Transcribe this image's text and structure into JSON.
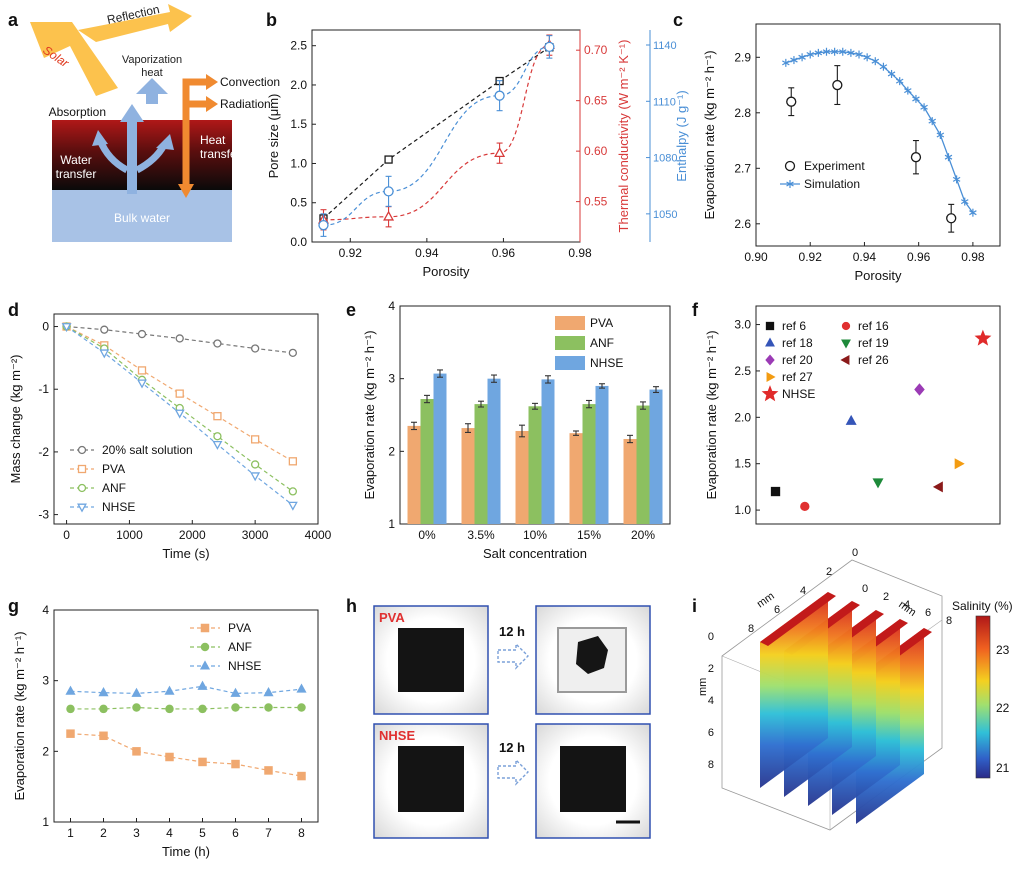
{
  "panel_letters": [
    "a",
    "b",
    "c",
    "d",
    "e",
    "f",
    "g",
    "h",
    "i"
  ],
  "colors": {
    "black": "#1a1a1a",
    "red": "#d83a3a",
    "blue": "#4a8fd6",
    "orange": "#f0a870",
    "green": "#8cc060",
    "nhse_blue": "#6fa6e0",
    "gray": "#777777"
  },
  "panel_a": {
    "solar": "Solar",
    "reflection": "Reflection",
    "vaporization_heat_line1": "Vaporization",
    "vaporization_heat_line2": "heat",
    "convection": "Convection",
    "radiation": "Radiation",
    "absorption": "Absorption",
    "heat_transfer_line1": "Heat",
    "heat_transfer_line2": "transfer",
    "water_transfer_line1": "Water",
    "water_transfer_line2": "transfer",
    "bulk_water": "Bulk water"
  },
  "panel_h": {
    "pva": "PVA",
    "nhse": "NHSE",
    "arrow_label_top": "12 h",
    "arrow_label_bottom": "12 h"
  },
  "chart_data": [
    {
      "id": "b",
      "type": "line",
      "xlabel": "Porosity",
      "ylabel": "Pore size (μm)",
      "y2label": "Thermal conductivity (W m⁻² K⁻¹)",
      "y3label": "Enthalpy (J g⁻¹)",
      "xlim": [
        0.91,
        0.98
      ],
      "ylim": [
        0,
        2.7
      ],
      "y2lim": [
        0.51,
        0.72
      ],
      "y3lim": [
        1035,
        1148
      ],
      "xticks": [
        "0.92",
        "0.94",
        "0.96",
        "0.98"
      ],
      "yticks": [
        "0.0",
        "0.5",
        "1.0",
        "1.5",
        "2.0",
        "2.5"
      ],
      "y2ticks": [
        "0.55",
        "0.60",
        "0.65",
        "0.70"
      ],
      "y3ticks": [
        "1050",
        "1080",
        "1110",
        "1140"
      ],
      "series": [
        {
          "axis": "left",
          "color": "#1a1a1a",
          "marker": "square",
          "x": [
            0.913,
            0.93,
            0.959,
            0.972
          ],
          "y": [
            0.3,
            1.05,
            2.05,
            2.48
          ]
        },
        {
          "axis": "right1",
          "color": "#d83a3a",
          "marker": "triangle",
          "x": [
            0.913,
            0.93,
            0.959,
            0.972
          ],
          "y": [
            0.532,
            0.535,
            0.598,
            0.705
          ],
          "err": [
            0.01,
            0.01,
            0.01,
            0.01
          ]
        },
        {
          "axis": "right2",
          "color": "#4a8fd6",
          "marker": "circle",
          "x": [
            0.913,
            0.93,
            0.959,
            0.972
          ],
          "y": [
            1044,
            1062,
            1113,
            1139
          ],
          "err": [
            6,
            8,
            8,
            6
          ]
        }
      ]
    },
    {
      "id": "c",
      "type": "scatter",
      "xlabel": "Porosity",
      "ylabel": "Evaporation rate (kg m⁻² h⁻¹)",
      "xlim": [
        0.9,
        0.99
      ],
      "ylim": [
        2.56,
        2.96
      ],
      "xticks": [
        "0.90",
        "0.92",
        "0.94",
        "0.96",
        "0.98"
      ],
      "yticks": [
        "2.6",
        "2.7",
        "2.8",
        "2.9"
      ],
      "legend": [
        "Experiment",
        "Simulation"
      ],
      "series": [
        {
          "name": "Experiment",
          "marker": "circle",
          "color": "#1a1a1a",
          "x": [
            0.913,
            0.93,
            0.959,
            0.972
          ],
          "y": [
            2.82,
            2.85,
            2.72,
            2.61
          ],
          "err": [
            0.025,
            0.035,
            0.03,
            0.025
          ]
        },
        {
          "name": "Simulation",
          "marker": "star",
          "color": "#4a8fd6",
          "x": [
            0.911,
            0.914,
            0.917,
            0.92,
            0.923,
            0.926,
            0.929,
            0.932,
            0.935,
            0.938,
            0.941,
            0.944,
            0.947,
            0.95,
            0.953,
            0.956,
            0.959,
            0.962,
            0.965,
            0.968,
            0.971,
            0.974,
            0.977,
            0.98
          ],
          "y": [
            2.89,
            2.895,
            2.9,
            2.905,
            2.908,
            2.91,
            2.91,
            2.91,
            2.908,
            2.905,
            2.9,
            2.893,
            2.883,
            2.87,
            2.857,
            2.84,
            2.825,
            2.81,
            2.785,
            2.76,
            2.72,
            2.68,
            2.64,
            2.62
          ]
        }
      ]
    },
    {
      "id": "d",
      "type": "line",
      "xlabel": "Time (s)",
      "ylabel": "Mass change (kg m⁻²)",
      "xlim": [
        -200,
        4000
      ],
      "ylim": [
        -3.15,
        0.2
      ],
      "xticks": [
        "0",
        "1000",
        "2000",
        "3000",
        "4000"
      ],
      "yticks": [
        "0",
        "-1",
        "-2",
        "-3"
      ],
      "legend": [
        "20% salt solution",
        "PVA",
        "ANF",
        "NHSE"
      ],
      "x": [
        0,
        600,
        1200,
        1800,
        2400,
        3000,
        3600
      ],
      "series": [
        {
          "name": "20% salt solution",
          "color": "#777777",
          "marker": "circle",
          "values": [
            0,
            -0.05,
            -0.12,
            -0.19,
            -0.27,
            -0.35,
            -0.42
          ]
        },
        {
          "name": "PVA",
          "color": "#f0a870",
          "marker": "square",
          "values": [
            0,
            -0.3,
            -0.7,
            -1.07,
            -1.43,
            -1.8,
            -2.15
          ]
        },
        {
          "name": "ANF",
          "color": "#8cc060",
          "marker": "circle",
          "values": [
            0,
            -0.35,
            -0.85,
            -1.3,
            -1.75,
            -2.2,
            -2.63
          ]
        },
        {
          "name": "NHSE",
          "color": "#6fa6e0",
          "marker": "triangle-down",
          "values": [
            0,
            -0.42,
            -0.9,
            -1.38,
            -1.88,
            -2.38,
            -2.85
          ]
        }
      ]
    },
    {
      "id": "e",
      "type": "bar",
      "xlabel": "Salt concentration",
      "ylabel": "Evaporation rate (kg m⁻² h⁻¹)",
      "ylim": [
        1,
        4
      ],
      "yticks": [
        "1",
        "2",
        "3",
        "4"
      ],
      "categories": [
        "0%",
        "3.5%",
        "10%",
        "15%",
        "20%"
      ],
      "legend": [
        "PVA",
        "ANF",
        "NHSE"
      ],
      "series": [
        {
          "name": "PVA",
          "color": "#f0a870",
          "values": [
            2.35,
            2.32,
            2.28,
            2.25,
            2.17
          ],
          "err": [
            0.05,
            0.06,
            0.08,
            0.03,
            0.05
          ]
        },
        {
          "name": "ANF",
          "color": "#8cc060",
          "values": [
            2.72,
            2.65,
            2.62,
            2.65,
            2.63
          ],
          "err": [
            0.05,
            0.04,
            0.04,
            0.05,
            0.05
          ]
        },
        {
          "name": "NHSE",
          "color": "#6fa6e0",
          "values": [
            3.07,
            3.0,
            2.99,
            2.9,
            2.85
          ],
          "err": [
            0.05,
            0.05,
            0.05,
            0.03,
            0.04
          ]
        }
      ]
    },
    {
      "id": "f",
      "type": "scatter",
      "ylabel": "Evaporation rate (kg m⁻² h⁻¹)",
      "ylim": [
        0.85,
        3.2
      ],
      "yticks": [
        "1.0",
        "1.5",
        "2.0",
        "2.5",
        "3.0"
      ],
      "legend": [
        "ref 6",
        "ref 16",
        "ref 18",
        "ref 19",
        "ref 20",
        "ref 26",
        "ref 27",
        "NHSE"
      ],
      "series": [
        {
          "name": "ref 6",
          "marker": "square",
          "color": "#111111",
          "x": 0.08,
          "y": 1.2
        },
        {
          "name": "ref 16",
          "marker": "circle",
          "color": "#e03030",
          "x": 0.2,
          "y": 1.04
        },
        {
          "name": "ref 18",
          "marker": "triangle",
          "color": "#3555b8",
          "x": 0.39,
          "y": 1.96
        },
        {
          "name": "ref 19",
          "marker": "triangle-down",
          "color": "#1e8a3a",
          "x": 0.5,
          "y": 1.3
        },
        {
          "name": "ref 20",
          "marker": "diamond",
          "color": "#9b3bb5",
          "x": 0.67,
          "y": 2.3
        },
        {
          "name": "ref 26",
          "marker": "triangle-left",
          "color": "#8b1a1a",
          "x": 0.75,
          "y": 1.25
        },
        {
          "name": "ref 27",
          "marker": "triangle-right",
          "color": "#f39c12",
          "x": 0.83,
          "y": 1.5
        },
        {
          "name": "NHSE",
          "marker": "star",
          "color": "#e02a2a",
          "x": 0.93,
          "y": 2.85
        }
      ]
    },
    {
      "id": "g",
      "type": "line",
      "xlabel": "Time (h)",
      "ylabel": "Evaporation rate (kg m⁻² h⁻¹)",
      "xlim": [
        0.5,
        8.5
      ],
      "ylim": [
        1,
        4
      ],
      "xticks": [
        "1",
        "2",
        "3",
        "4",
        "5",
        "6",
        "7",
        "8"
      ],
      "yticks": [
        "1",
        "2",
        "3",
        "4"
      ],
      "legend": [
        "PVA",
        "ANF",
        "NHSE"
      ],
      "x": [
        1,
        2,
        3,
        4,
        5,
        6,
        7,
        8
      ],
      "series": [
        {
          "name": "PVA",
          "color": "#f0a870",
          "marker": "square",
          "values": [
            2.25,
            2.22,
            2.0,
            1.92,
            1.85,
            1.82,
            1.73,
            1.65
          ]
        },
        {
          "name": "ANF",
          "color": "#8cc060",
          "marker": "circle",
          "values": [
            2.6,
            2.6,
            2.62,
            2.6,
            2.6,
            2.62,
            2.62,
            2.62
          ]
        },
        {
          "name": "NHSE",
          "color": "#6fa6e0",
          "marker": "triangle",
          "values": [
            2.85,
            2.83,
            2.82,
            2.85,
            2.92,
            2.82,
            2.83,
            2.88
          ]
        }
      ]
    },
    {
      "id": "i",
      "type": "heatmap",
      "colorbar_label": "Salinity (%)",
      "colorbar_ticks": [
        "21",
        "22",
        "23"
      ],
      "axis_unit": "mm",
      "x_ticks": [
        "8",
        "6",
        "4",
        "2",
        "0"
      ],
      "y_ticks": [
        "0",
        "2",
        "4",
        "6",
        "8"
      ],
      "z_ticks": [
        "0",
        "2",
        "4",
        "6",
        "8"
      ]
    }
  ]
}
